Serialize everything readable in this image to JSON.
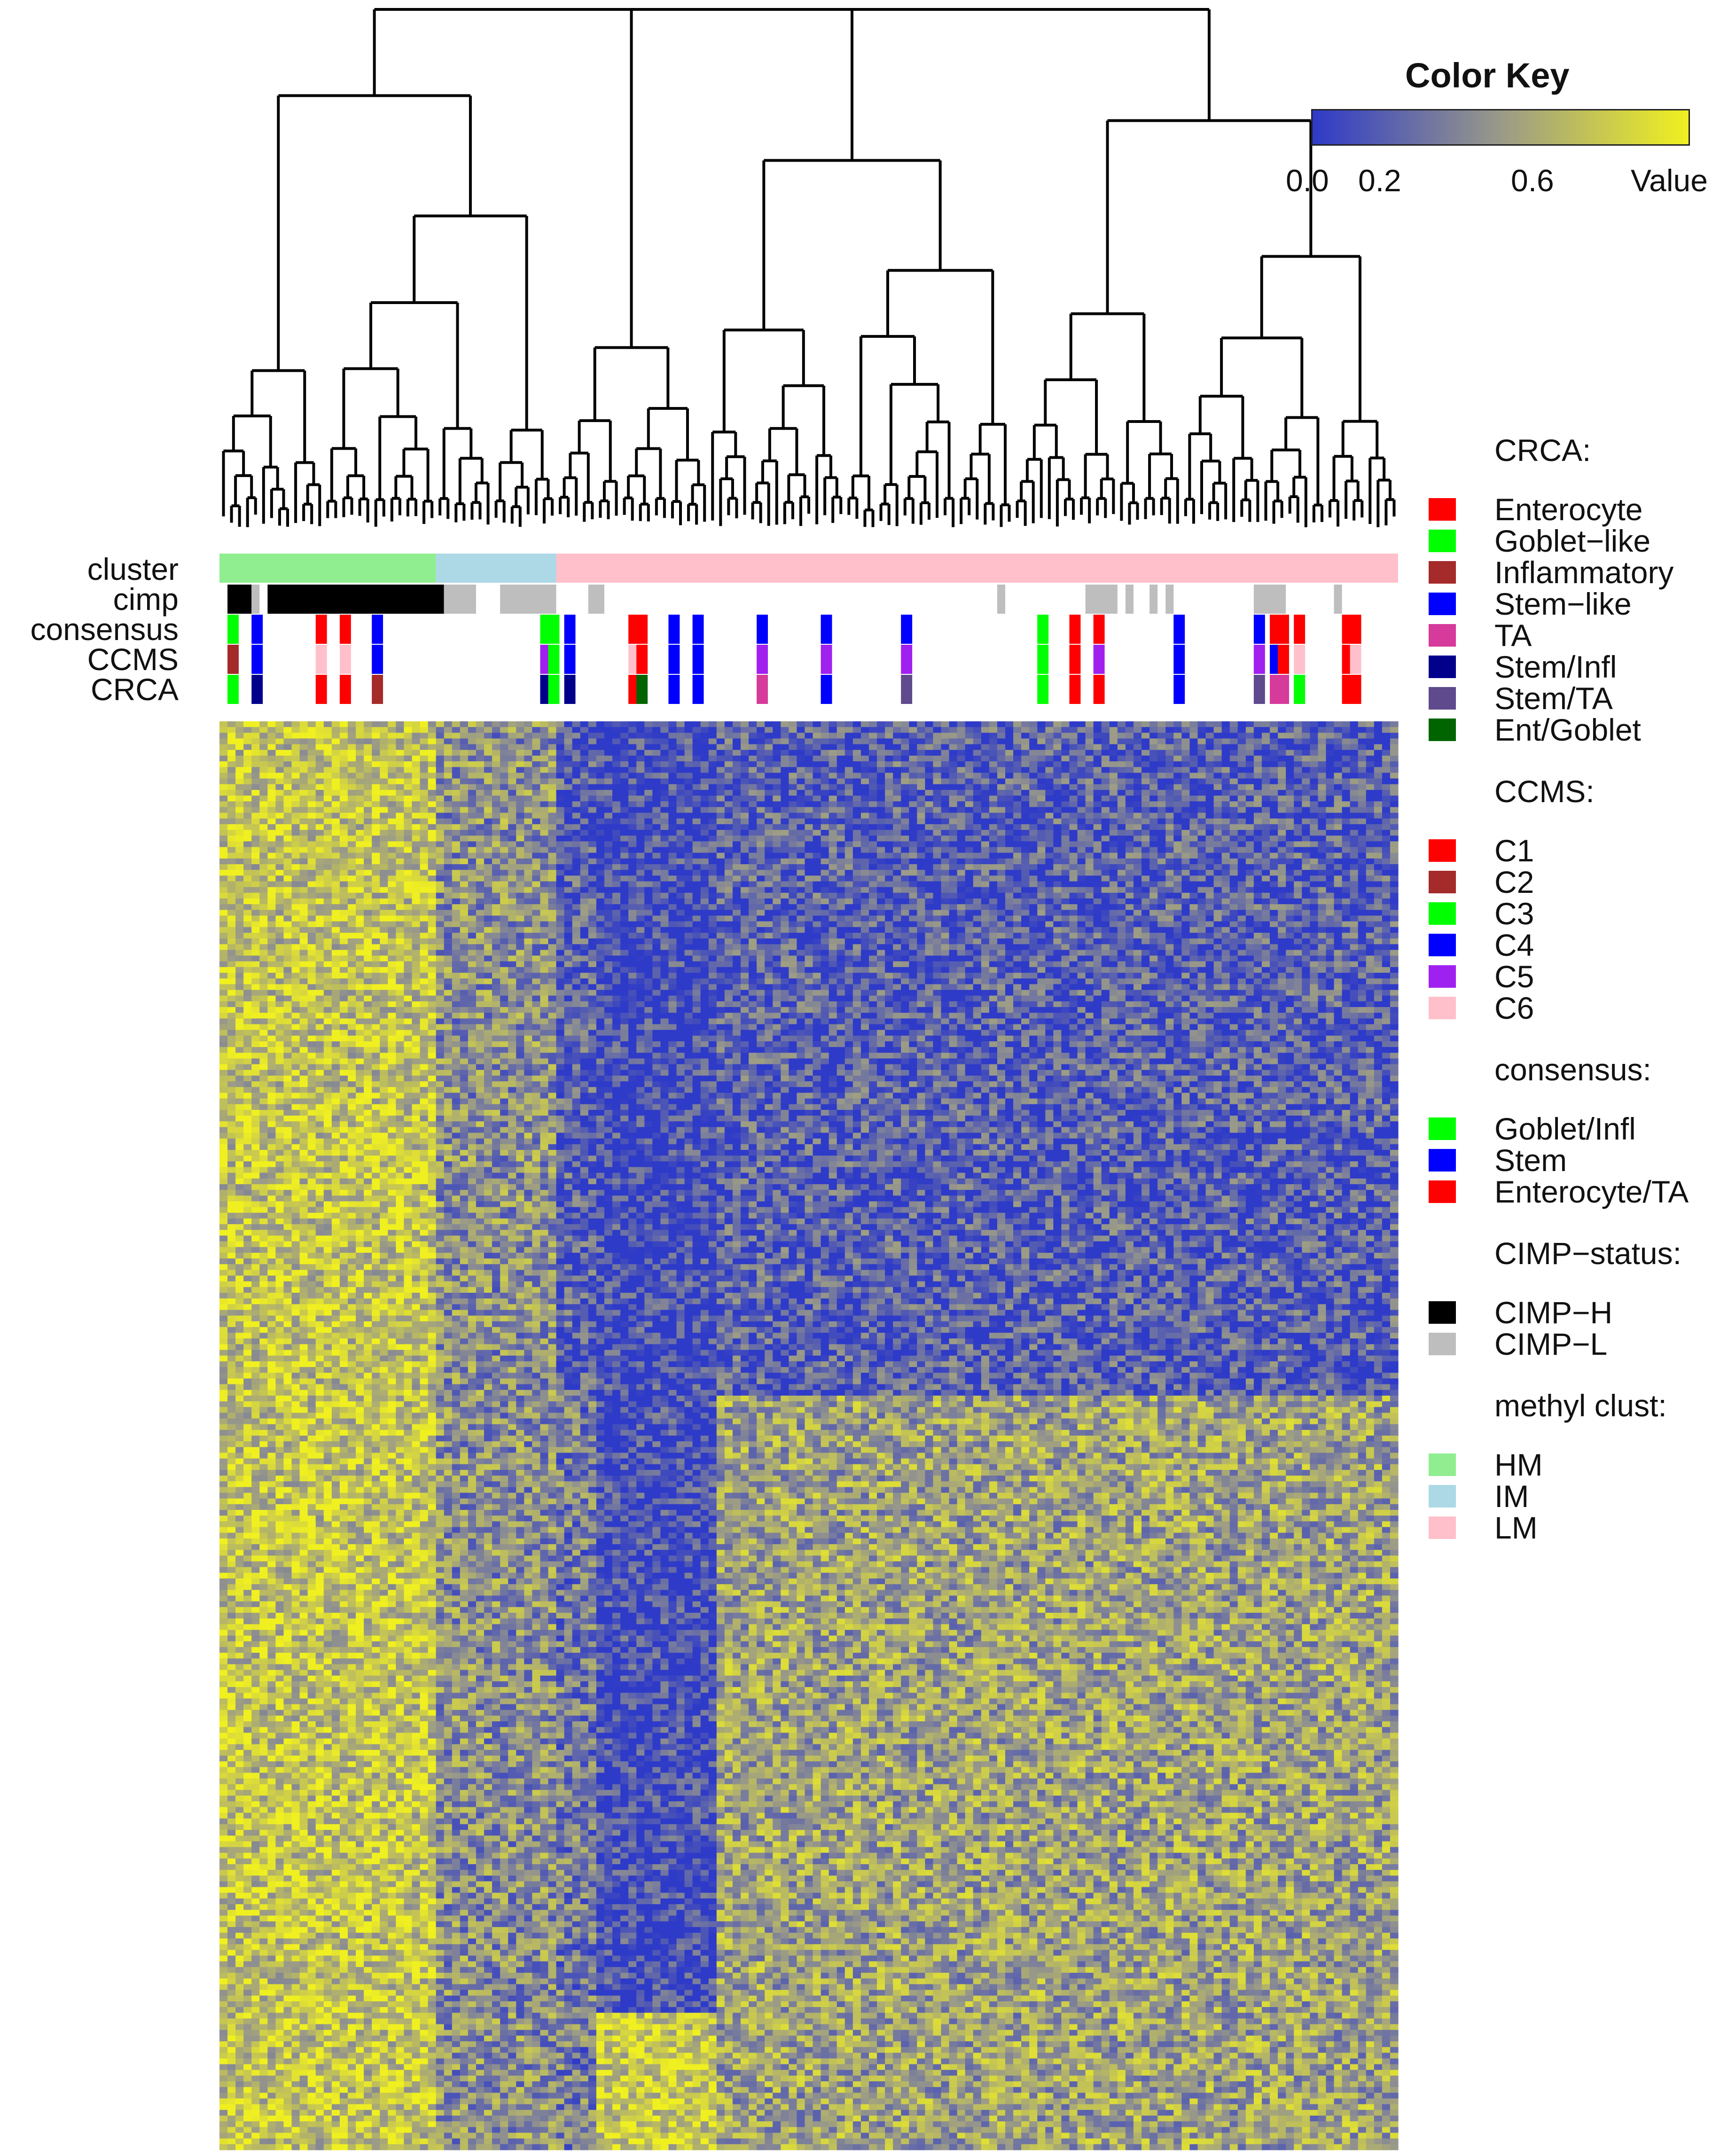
{
  "chart_data": {
    "type": "heatmap",
    "title": "",
    "color_key": {
      "title": "Color Key",
      "ticks": [
        "0.0",
        "0.2",
        "0.6"
      ],
      "value_label": "Value",
      "range": [
        0,
        1
      ],
      "colors": [
        "#2E3AC8",
        "#9A9A88",
        "#F0F020"
      ]
    },
    "track_labels": [
      "cluster",
      "cimp",
      "consensus",
      "CCMS",
      "CRCA"
    ],
    "column_count": 147,
    "row_count": 250,
    "column_groups": [
      {
        "cluster": "HM",
        "start": 0,
        "end": 27
      },
      {
        "cluster": "IM",
        "start": 27,
        "end": 42
      },
      {
        "cluster": "LM",
        "start": 42,
        "end": 147
      }
    ],
    "cimp_blocks": [
      {
        "status": "CIMP-H",
        "start": 1,
        "end": 4
      },
      {
        "status": "CIMP-L",
        "start": 4,
        "end": 5
      },
      {
        "status": "CIMP-H",
        "start": 6,
        "end": 28
      },
      {
        "status": "CIMP-L",
        "start": 28,
        "end": 32
      },
      {
        "status": "CIMP-L",
        "start": 35,
        "end": 42
      },
      {
        "status": "CIMP-L",
        "start": 46,
        "end": 48
      },
      {
        "status": "CIMP-L",
        "start": 97,
        "end": 98
      },
      {
        "status": "CIMP-L",
        "start": 108,
        "end": 112
      },
      {
        "status": "CIMP-L",
        "start": 113,
        "end": 114
      },
      {
        "status": "CIMP-L",
        "start": 116,
        "end": 117
      },
      {
        "status": "CIMP-L",
        "start": 118,
        "end": 119
      },
      {
        "status": "CIMP-L",
        "start": 129,
        "end": 133
      },
      {
        "status": "CIMP-L",
        "start": 139,
        "end": 140
      }
    ],
    "annotated_columns": [
      {
        "col": 1,
        "consensus": "Goblet/Infl",
        "ccms": "C2",
        "crca": "Goblet-like"
      },
      {
        "col": 4,
        "consensus": "Stem",
        "ccms": "C4",
        "crca": "Stem/Infl"
      },
      {
        "col": 12,
        "consensus": "Enterocyte/TA",
        "ccms": "C6",
        "crca": "Enterocyte"
      },
      {
        "col": 15,
        "consensus": "Enterocyte/TA",
        "ccms": "C6",
        "crca": "Enterocyte"
      },
      {
        "col": 19,
        "consensus": "Stem",
        "ccms": "C4",
        "crca": "Inflammatory"
      },
      {
        "col": 40,
        "consensus": "Goblet/Infl",
        "ccms": "C5",
        "crca": "Stem/Infl"
      },
      {
        "col": 41,
        "consensus": "Goblet/Infl",
        "ccms": "C3",
        "crca": "Goblet-like"
      },
      {
        "col": 43,
        "consensus": "Stem",
        "ccms": "C4",
        "crca": "Stem/Infl"
      },
      {
        "col": 51,
        "consensus": "Enterocyte/TA",
        "ccms": "C6",
        "crca": "Enterocyte"
      },
      {
        "col": 52,
        "consensus": "Enterocyte/TA",
        "ccms": "C1",
        "crca": "Ent/Goblet"
      },
      {
        "col": 56,
        "consensus": "Stem",
        "ccms": "C4",
        "crca": "Stem-like"
      },
      {
        "col": 59,
        "consensus": "Stem",
        "ccms": "C4",
        "crca": "Stem-like"
      },
      {
        "col": 67,
        "consensus": "Stem",
        "ccms": "C5",
        "crca": "TA"
      },
      {
        "col": 75,
        "consensus": "Stem",
        "ccms": "C5",
        "crca": "Stem-like"
      },
      {
        "col": 85,
        "consensus": "Stem",
        "ccms": "C5",
        "crca": "Stem/TA"
      },
      {
        "col": 102,
        "consensus": "Goblet/Infl",
        "ccms": "C3",
        "crca": "Goblet-like"
      },
      {
        "col": 106,
        "consensus": "Enterocyte/TA",
        "ccms": "C1",
        "crca": "Enterocyte"
      },
      {
        "col": 109,
        "consensus": "Enterocyte/TA",
        "ccms": "C5",
        "crca": "Enterocyte"
      },
      {
        "col": 119,
        "consensus": "Stem",
        "ccms": "C4",
        "crca": "Stem-like"
      },
      {
        "col": 129,
        "consensus": "Stem",
        "ccms": "C5",
        "crca": "Stem/TA"
      },
      {
        "col": 131,
        "consensus": "Enterocyte/TA",
        "ccms": "C4",
        "crca": "TA"
      },
      {
        "col": 132,
        "consensus": "Enterocyte/TA",
        "ccms": "C1",
        "crca": "TA"
      },
      {
        "col": 134,
        "consensus": "Enterocyte/TA",
        "ccms": "C6",
        "crca": "Goblet-like"
      },
      {
        "col": 140,
        "consensus": "Enterocyte/TA",
        "ccms": "C1",
        "crca": "Enterocyte"
      },
      {
        "col": 141,
        "consensus": "Enterocyte/TA",
        "ccms": "C6",
        "crca": "Enterocyte"
      }
    ],
    "heatmap_blocks": [
      {
        "description": "HM columns mostly high",
        "cols": [
          0,
          27
        ],
        "rows": [
          0,
          250
        ],
        "level": 0.75
      },
      {
        "description": "IM columns mixed",
        "cols": [
          27,
          42
        ],
        "rows": [
          0,
          250
        ],
        "level": 0.45
      },
      {
        "description": "LM upper low",
        "cols": [
          42,
          147
        ],
        "rows": [
          0,
          118
        ],
        "level": 0.18
      },
      {
        "description": "LM lower mixed high",
        "cols": [
          62,
          147
        ],
        "rows": [
          118,
          250
        ],
        "level": 0.55
      },
      {
        "description": "low stripe",
        "cols": [
          47,
          62
        ],
        "rows": [
          0,
          226
        ],
        "level": 0.08
      },
      {
        "description": "bottom high block",
        "cols": [
          47,
          62
        ],
        "rows": [
          226,
          250
        ],
        "level": 0.8
      }
    ]
  },
  "legends": [
    {
      "title": "CRCA:",
      "items": [
        {
          "label": "Enterocyte",
          "color": "#FF0000"
        },
        {
          "label": "Goblet−like",
          "color": "#00FF00"
        },
        {
          "label": "Inflammatory",
          "color": "#A52A2A"
        },
        {
          "label": "Stem−like",
          "color": "#0000FF"
        },
        {
          "label": "TA",
          "color": "#D63A9A"
        },
        {
          "label": "Stem/Infl",
          "color": "#00008B"
        },
        {
          "label": "Stem/TA",
          "color": "#5E4A8C"
        },
        {
          "label": "Ent/Goblet",
          "color": "#006400"
        }
      ]
    },
    {
      "title": "CCMS:",
      "items": [
        {
          "label": "C1",
          "color": "#FF0000"
        },
        {
          "label": "C2",
          "color": "#A52A2A"
        },
        {
          "label": "C3",
          "color": "#00FF00"
        },
        {
          "label": "C4",
          "color": "#0000FF"
        },
        {
          "label": "C5",
          "color": "#A020F0"
        },
        {
          "label": "C6",
          "color": "#FFC0CB"
        }
      ]
    },
    {
      "title": "consensus:",
      "items": [
        {
          "label": "Goblet/Infl",
          "color": "#00FF00"
        },
        {
          "label": "Stem",
          "color": "#0000FF"
        },
        {
          "label": "Enterocyte/TA",
          "color": "#FF0000"
        }
      ]
    },
    {
      "title": "CIMP−status:",
      "items": [
        {
          "label": "CIMP−H",
          "color": "#000000"
        },
        {
          "label": "CIMP−L",
          "color": "#BEBEBE"
        }
      ]
    },
    {
      "title": "methyl clust:",
      "items": [
        {
          "label": "HM",
          "color": "#90EE90"
        },
        {
          "label": "IM",
          "color": "#ADD8E6"
        },
        {
          "label": "LM",
          "color": "#FFC0CB"
        }
      ]
    }
  ]
}
